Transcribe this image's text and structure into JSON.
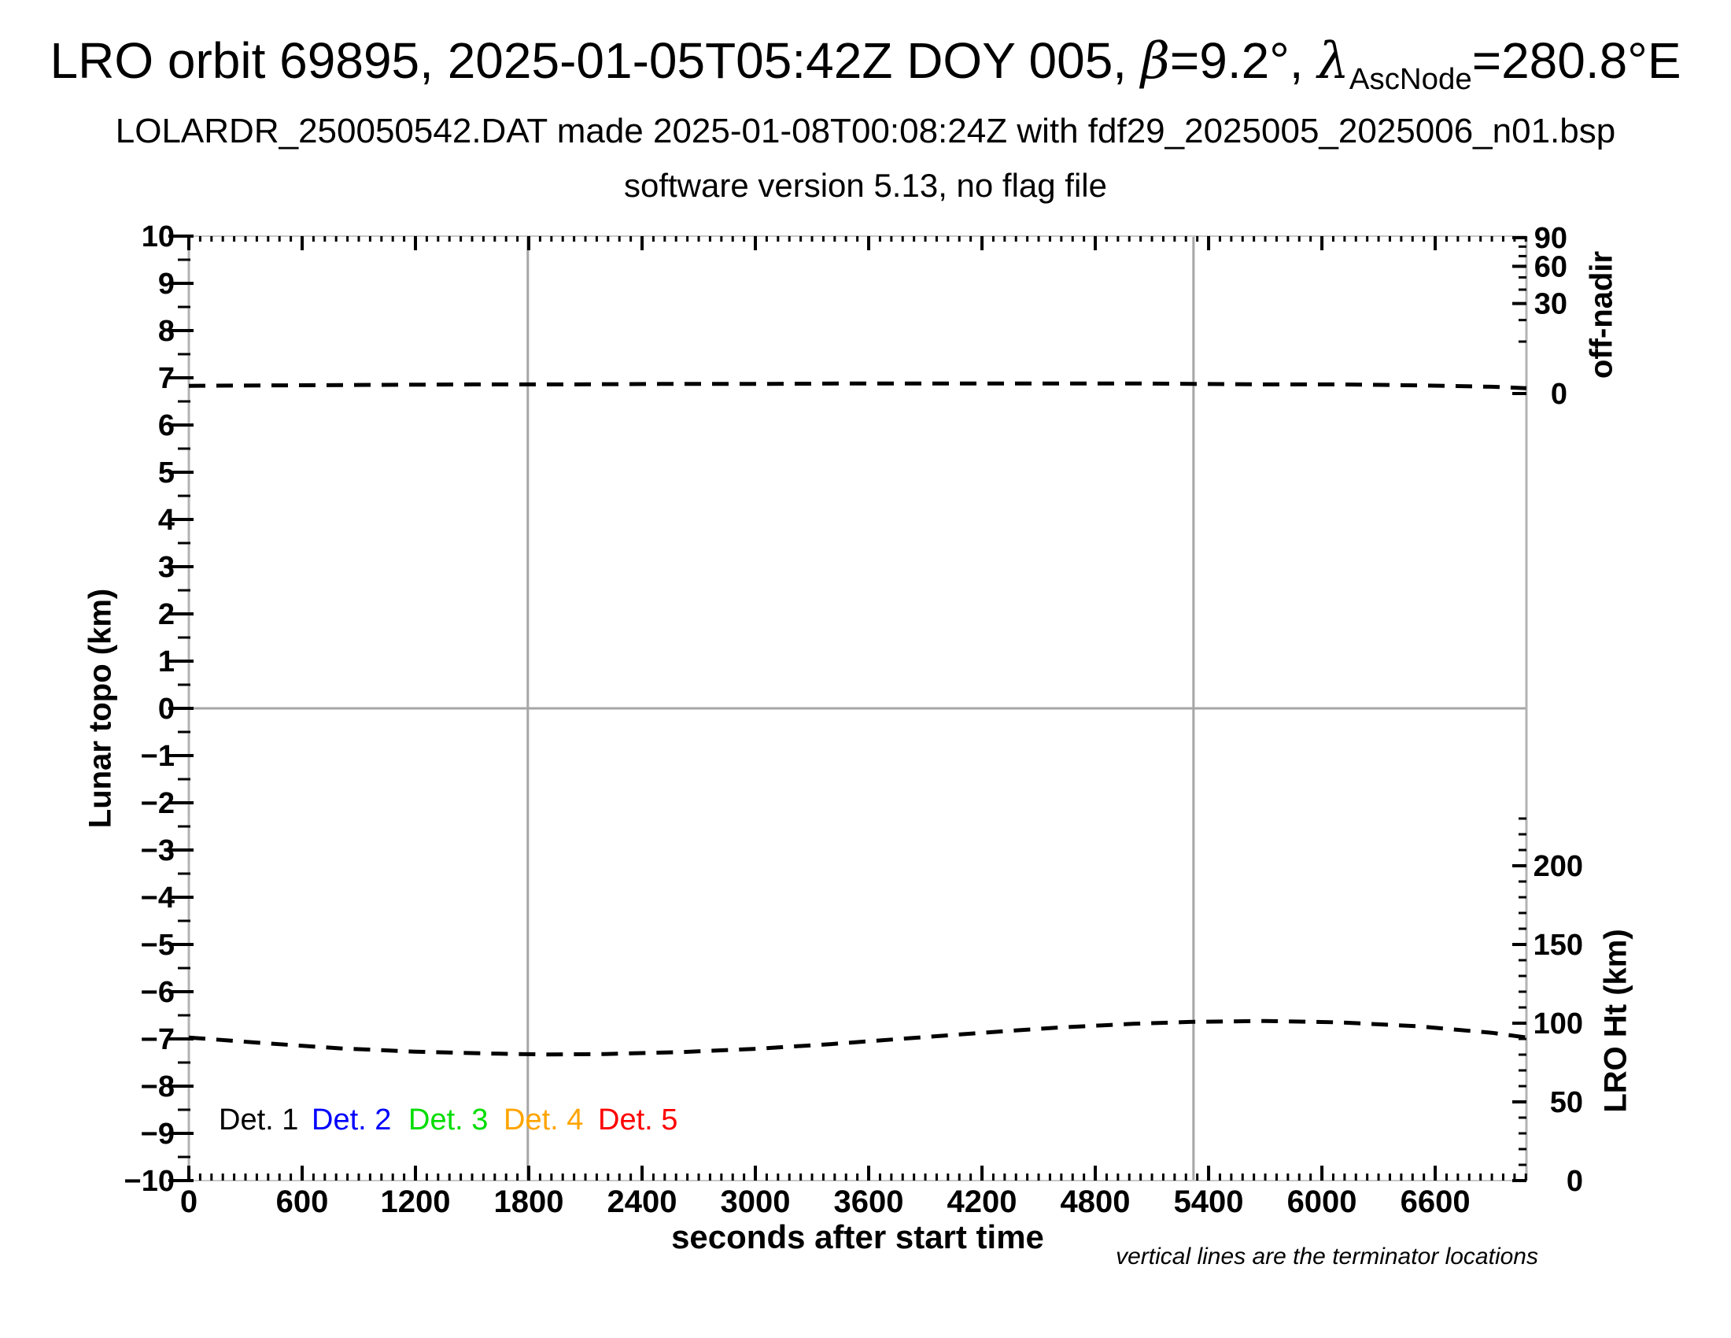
{
  "header": {
    "title_segments": {
      "s1": "LRO orbit 69895, 2025-01-05T05:42Z DOY 005, ",
      "beta": "β",
      "s2": "=9.2°, ",
      "lambda": "λ",
      "sub": "AscNode",
      "s3": "=280.8°E"
    },
    "subtitle1": "LOLARDR_250050542.DAT made 2025-01-08T00:08:24Z with fdf29_2025005_2025006_n01.bsp",
    "subtitle2": "software version 5.13, no flag file"
  },
  "chart_data": {
    "type": "line",
    "title": "LRO orbit 69895, 2025-01-05T05:42Z DOY 005, β=9.2°, λAscNode=280.8°E",
    "xlabel": "seconds after start time",
    "ylabel_left": "Lunar topo (km)",
    "ylabel_right_top": "off-nadir",
    "ylabel_right_bottom": "LRO Ht (km)",
    "footnote": "vertical lines are the terminator locations",
    "grid": false,
    "background": "#ffffff",
    "axis_color": "#a6a6a6",
    "xlim": [
      0,
      7083
    ],
    "ylim_left": [
      -10,
      10
    ],
    "ylim_right_offnadir_deg": [
      0,
      90
    ],
    "ylim_right_lro_ht_km": [
      0,
      200
    ],
    "x_ticks": [
      0,
      600,
      1200,
      1800,
      2400,
      3000,
      3600,
      4200,
      4800,
      5400,
      6000,
      6600
    ],
    "x_minor_step": 60,
    "y_ticks": [
      10,
      9,
      8,
      7,
      6,
      5,
      4,
      3,
      2,
      1,
      0,
      -1,
      -2,
      -3,
      -4,
      -5,
      -6,
      -7,
      -8,
      -9,
      -10
    ],
    "y_minor_step": 0.5,
    "offnadir_ticks": {
      "major": [
        90,
        60,
        30,
        0
      ],
      "minor": [
        80,
        70,
        50,
        40,
        20,
        10
      ],
      "scale": "sqrt(angle/90)"
    },
    "lro_ht_ticks": {
      "major": [
        200,
        150,
        100,
        50,
        0
      ],
      "minor_step": 10,
      "minor_max": 230
    },
    "terminator_lines_x_sec": [
      1795,
      5320
    ],
    "zero_line_y": 0,
    "series": [
      {
        "name": "off-nadir angle track",
        "color": "#000000",
        "style": "dashed",
        "axis": "left (topo units); equals ~0.3 deg off-nadir on right sqrt scale",
        "points_topo": [
          [
            0,
            6.83
          ],
          [
            500,
            6.84
          ],
          [
            1000,
            6.85
          ],
          [
            1500,
            6.86
          ],
          [
            2000,
            6.86
          ],
          [
            2500,
            6.87
          ],
          [
            3000,
            6.87
          ],
          [
            3500,
            6.88
          ],
          [
            4000,
            6.88
          ],
          [
            4500,
            6.88
          ],
          [
            5000,
            6.88
          ],
          [
            5320,
            6.87
          ],
          [
            5700,
            6.86
          ],
          [
            6100,
            6.86
          ],
          [
            6500,
            6.84
          ],
          [
            6900,
            6.81
          ],
          [
            7083,
            6.78
          ]
        ],
        "approx_off_nadir_deg": 0.3
      },
      {
        "name": "LRO height track",
        "color": "#000000",
        "style": "dashed",
        "axis": "left (topo units); right axis gives altitude in km",
        "points_topo": [
          [
            0,
            -6.97
          ],
          [
            400,
            -7.09
          ],
          [
            800,
            -7.2
          ],
          [
            1200,
            -7.27
          ],
          [
            1600,
            -7.31
          ],
          [
            1900,
            -7.33
          ],
          [
            2200,
            -7.32
          ],
          [
            2600,
            -7.28
          ],
          [
            3000,
            -7.21
          ],
          [
            3400,
            -7.11
          ],
          [
            3800,
            -6.99
          ],
          [
            4200,
            -6.87
          ],
          [
            4600,
            -6.76
          ],
          [
            5000,
            -6.68
          ],
          [
            5300,
            -6.64
          ],
          [
            5700,
            -6.62
          ],
          [
            6100,
            -6.65
          ],
          [
            6500,
            -6.73
          ],
          [
            6900,
            -6.87
          ],
          [
            7083,
            -6.97
          ]
        ],
        "points_km": [
          [
            0,
            90.9
          ],
          [
            400,
            87.3
          ],
          [
            800,
            84.0
          ],
          [
            1200,
            81.9
          ],
          [
            1600,
            80.7
          ],
          [
            1900,
            80.1
          ],
          [
            2200,
            80.4
          ],
          [
            2600,
            81.6
          ],
          [
            3000,
            83.7
          ],
          [
            3400,
            86.7
          ],
          [
            3800,
            90.3
          ],
          [
            4200,
            93.9
          ],
          [
            4600,
            97.2
          ],
          [
            5000,
            99.6
          ],
          [
            5300,
            100.8
          ],
          [
            5700,
            101.4
          ],
          [
            6100,
            100.5
          ],
          [
            6500,
            98.1
          ],
          [
            6900,
            93.9
          ],
          [
            7083,
            90.9
          ]
        ]
      }
    ],
    "legend": [
      {
        "label": "Det. 1",
        "color": "#000000"
      },
      {
        "label": "Det. 2",
        "color": "#0000ff"
      },
      {
        "label": "Det. 3",
        "color": "#00dd00"
      },
      {
        "label": "Det. 4",
        "color": "#ffa400"
      },
      {
        "label": "Det. 5",
        "color": "#ff0000"
      }
    ]
  }
}
